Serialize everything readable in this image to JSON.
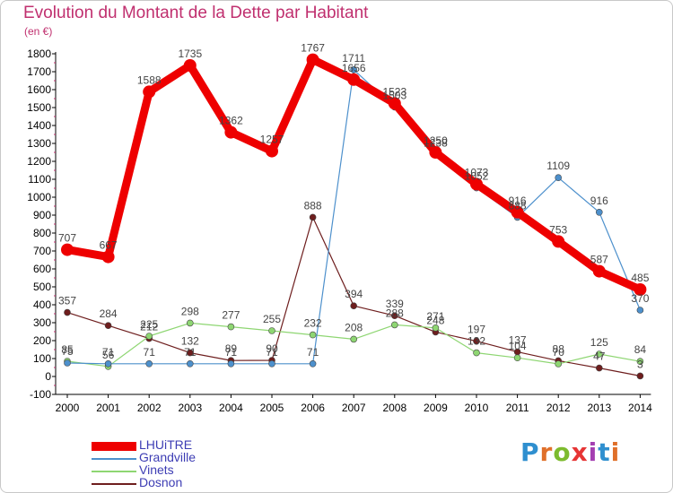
{
  "title": "Evolution du Montant de la Dette par Habitant",
  "unit": "(en €)",
  "brand": "Proxiti",
  "brand_colors": [
    "#2f8fcf",
    "#e0702a",
    "#7dbb2e",
    "#e63535",
    "#a43fb1",
    "#2f8fcf",
    "#e0702a"
  ],
  "chart_data": {
    "type": "line",
    "title": "Evolution du Montant de la Dette par Habitant",
    "ylabel": "(en €)",
    "xlabel": "",
    "ylim": [
      -100,
      1800
    ],
    "yticks": [
      -100,
      0,
      100,
      200,
      300,
      400,
      500,
      600,
      700,
      800,
      900,
      1000,
      1100,
      1200,
      1300,
      1400,
      1500,
      1600,
      1700,
      1800
    ],
    "x": [
      "2000",
      "2001",
      "2002",
      "2003",
      "2004",
      "2005",
      "2006",
      "2007",
      "2008",
      "2009",
      "2010",
      "2011",
      "2012",
      "2013",
      "2014"
    ],
    "grid": false,
    "legend_position": "bottom-left",
    "series": [
      {
        "name": "LHUiTRE",
        "color": "#ee0000",
        "values": [
          707,
          667,
          1588,
          1735,
          1362,
          1257,
          1767,
          1656,
          1523,
          1250,
          1073,
          916,
          753,
          587,
          485
        ]
      },
      {
        "name": "Grandville",
        "color": "#4d90cc",
        "values": [
          75,
          71,
          71,
          71,
          71,
          71,
          71,
          1711,
          1503,
          1238,
          1052,
          888,
          1109,
          916,
          370
        ]
      },
      {
        "name": "Vinets",
        "color": "#8ed672",
        "values": [
          85,
          56,
          225,
          298,
          277,
          255,
          232,
          208,
          288,
          271,
          132,
          104,
          70,
          125,
          84
        ]
      },
      {
        "name": "Dosnon",
        "color": "#6e1e1e",
        "values": [
          357,
          284,
          212,
          132,
          89,
          90,
          888,
          394,
          339,
          248,
          197,
          137,
          88,
          47,
          3
        ]
      }
    ]
  }
}
